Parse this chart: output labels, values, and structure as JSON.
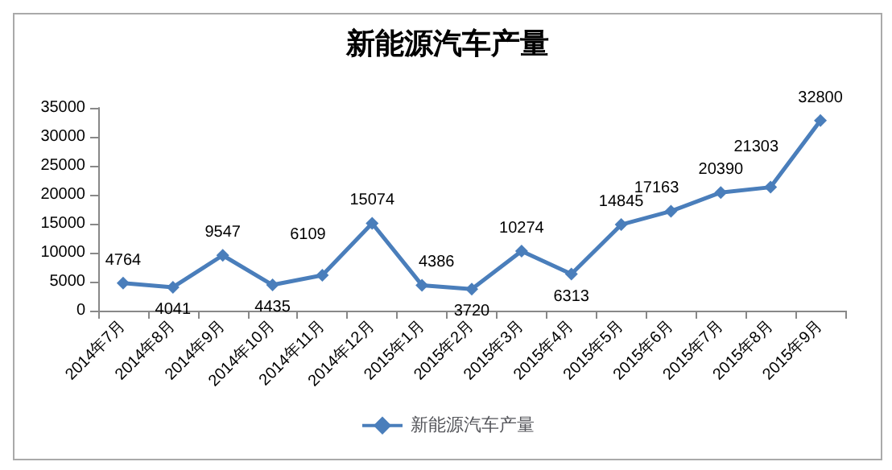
{
  "chart_data": {
    "type": "line",
    "title": "新能源汽车产量",
    "categories": [
      "2014年7月",
      "2014年8月",
      "2014年9月",
      "2014年10月",
      "2014年11月",
      "2014年12月",
      "2015年1月",
      "2015年2月",
      "2015年3月",
      "2015年4月",
      "2015年5月",
      "2015年6月",
      "2015年7月",
      "2015年8月",
      "2015年9月"
    ],
    "series": [
      {
        "name": "新能源汽车产量",
        "color": "#4a7ebb",
        "values": [
          4764,
          4041,
          9547,
          4435,
          6109,
          15074,
          4386,
          3720,
          10274,
          6313,
          14845,
          17163,
          20390,
          21303,
          32800
        ]
      }
    ],
    "ylim": [
      0,
      35000
    ],
    "yticks": [
      0,
      5000,
      10000,
      15000,
      20000,
      25000,
      30000,
      35000
    ],
    "data_labels": true,
    "marker": "diamond",
    "line_style": "solid",
    "legend": "bottom",
    "grid": false
  }
}
